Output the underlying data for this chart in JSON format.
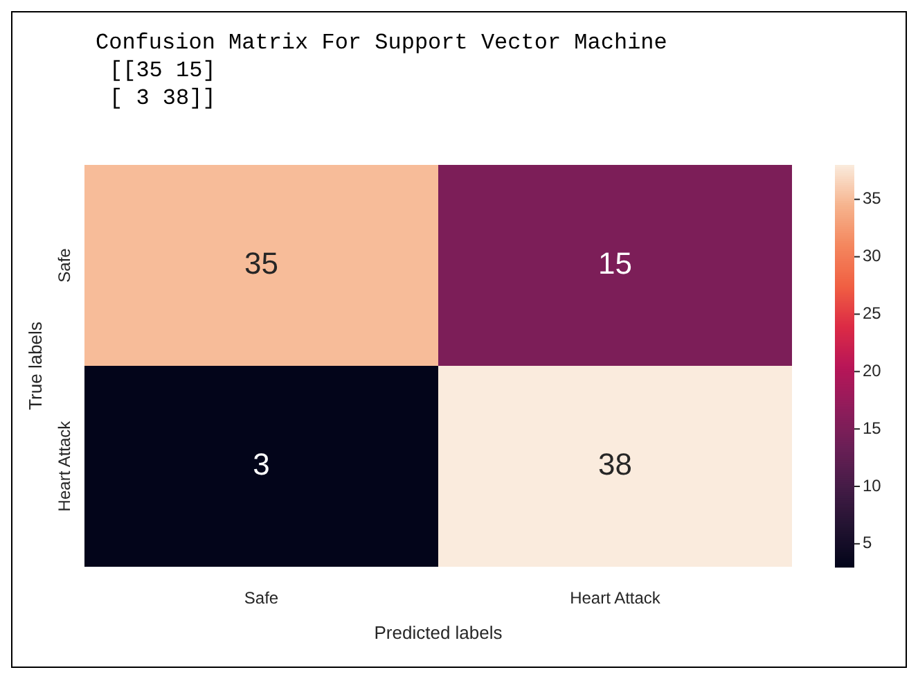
{
  "chart_data": {
    "type": "heatmap",
    "title": "Confusion Matrix For Support Vector Machine",
    "annotations": [
      "[[35 15]",
      "[ 3 38]]"
    ],
    "categories": [
      "Safe",
      "Heart Attack"
    ],
    "y_categories": [
      "Safe",
      "Heart Attack"
    ],
    "cells": [
      [
        35,
        15
      ],
      [
        3,
        38
      ]
    ],
    "data_labels": true,
    "xlabel": "Predicted labels",
    "ylabel": "True labels",
    "clim": [
      3,
      38
    ],
    "cticks": [
      5,
      10,
      15,
      20,
      25,
      30,
      35
    ]
  }
}
